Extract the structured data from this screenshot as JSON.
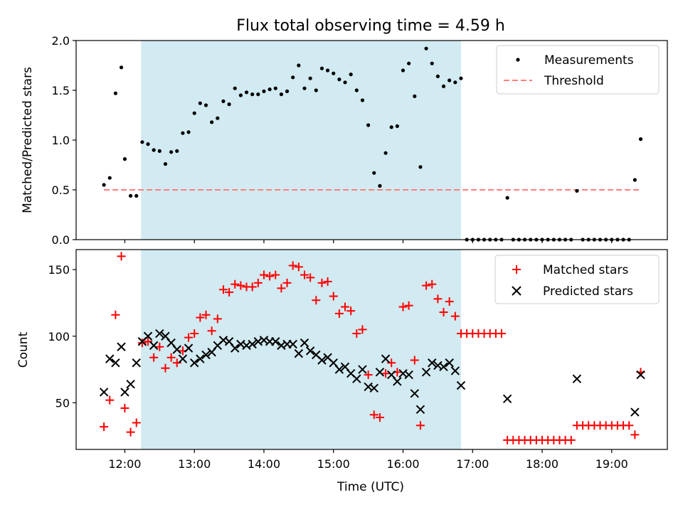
{
  "chart_data": [
    {
      "type": "scatter",
      "title": "Flux total observing time = 4.59 h",
      "ylabel": "Matched/Predicted stars",
      "xlabel": "",
      "xlim": [
        "11:18",
        "19:48"
      ],
      "ylim": [
        0,
        2.0
      ],
      "yticks": [
        "0.0",
        "0.5",
        "1.0",
        "1.5",
        "2.0"
      ],
      "xticks_labeled": false,
      "shaded_region": [
        "12:14",
        "16:50"
      ],
      "legend": [
        "Measurements",
        "Threshold"
      ],
      "legend_position": "top-right",
      "series": [
        {
          "name": "Measurements",
          "points": [
            [
              "11:42",
              0.55
            ],
            [
              "11:47",
              0.62
            ],
            [
              "11:52",
              1.47
            ],
            [
              "11:57",
              1.73
            ],
            [
              "12:00",
              0.81
            ],
            [
              "12:05",
              0.44
            ],
            [
              "12:10",
              0.44
            ],
            [
              "12:15",
              0.98
            ],
            [
              "12:20",
              0.96
            ],
            [
              "12:25",
              0.9
            ],
            [
              "12:30",
              0.89
            ],
            [
              "12:35",
              0.76
            ],
            [
              "12:40",
              0.88
            ],
            [
              "12:45",
              0.89
            ],
            [
              "12:50",
              1.07
            ],
            [
              "12:55",
              1.08
            ],
            [
              "13:00",
              1.27
            ],
            [
              "13:05",
              1.37
            ],
            [
              "13:10",
              1.35
            ],
            [
              "13:15",
              1.18
            ],
            [
              "13:20",
              1.22
            ],
            [
              "13:25",
              1.39
            ],
            [
              "13:30",
              1.36
            ],
            [
              "13:35",
              1.52
            ],
            [
              "13:40",
              1.45
            ],
            [
              "13:45",
              1.48
            ],
            [
              "13:50",
              1.46
            ],
            [
              "13:55",
              1.46
            ],
            [
              "14:00",
              1.49
            ],
            [
              "14:05",
              1.51
            ],
            [
              "14:10",
              1.52
            ],
            [
              "14:15",
              1.46
            ],
            [
              "14:20",
              1.49
            ],
            [
              "14:25",
              1.63
            ],
            [
              "14:30",
              1.75
            ],
            [
              "14:35",
              1.52
            ],
            [
              "14:40",
              1.62
            ],
            [
              "14:45",
              1.5
            ],
            [
              "14:50",
              1.72
            ],
            [
              "14:55",
              1.7
            ],
            [
              "15:00",
              1.67
            ],
            [
              "15:05",
              1.61
            ],
            [
              "15:10",
              1.58
            ],
            [
              "15:15",
              1.66
            ],
            [
              "15:20",
              1.5
            ],
            [
              "15:25",
              1.4
            ],
            [
              "15:30",
              1.15
            ],
            [
              "15:35",
              0.67
            ],
            [
              "15:40",
              0.54
            ],
            [
              "15:45",
              0.87
            ],
            [
              "15:50",
              1.13
            ],
            [
              "15:55",
              1.14
            ],
            [
              "16:00",
              1.7
            ],
            [
              "16:05",
              1.77
            ],
            [
              "16:10",
              1.44
            ],
            [
              "16:15",
              0.73
            ],
            [
              "16:20",
              1.92
            ],
            [
              "16:25",
              1.77
            ],
            [
              "16:30",
              1.64
            ],
            [
              "16:35",
              1.54
            ],
            [
              "16:40",
              1.6
            ],
            [
              "16:45",
              1.58
            ],
            [
              "16:50",
              1.62
            ],
            [
              "16:55",
              0.0
            ],
            [
              "17:00",
              0.0
            ],
            [
              "17:05",
              0.0
            ],
            [
              "17:10",
              0.0
            ],
            [
              "17:15",
              0.0
            ],
            [
              "17:20",
              0.0
            ],
            [
              "17:25",
              0.0
            ],
            [
              "17:30",
              0.42
            ],
            [
              "17:35",
              0.0
            ],
            [
              "17:40",
              0.0
            ],
            [
              "17:45",
              0.0
            ],
            [
              "17:50",
              0.0
            ],
            [
              "17:55",
              0.0
            ],
            [
              "18:00",
              0.0
            ],
            [
              "18:05",
              0.0
            ],
            [
              "18:10",
              0.0
            ],
            [
              "18:15",
              0.0
            ],
            [
              "18:20",
              0.0
            ],
            [
              "18:25",
              0.0
            ],
            [
              "18:30",
              0.49
            ],
            [
              "18:35",
              0.0
            ],
            [
              "18:40",
              0.0
            ],
            [
              "18:45",
              0.0
            ],
            [
              "18:50",
              0.0
            ],
            [
              "18:55",
              0.0
            ],
            [
              "19:00",
              0.0
            ],
            [
              "19:05",
              0.0
            ],
            [
              "19:10",
              0.0
            ],
            [
              "19:15",
              0.0
            ],
            [
              "19:20",
              0.6
            ],
            [
              "19:25",
              1.01
            ]
          ]
        },
        {
          "name": "Threshold",
          "style": "dashed",
          "points": [
            [
              "11:42",
              0.5
            ],
            [
              "19:25",
              0.5
            ]
          ]
        }
      ],
      "colors": {
        "measurements": "#000000",
        "threshold": "#ff7f7f",
        "shade": "#add8e6"
      }
    },
    {
      "type": "scatter",
      "title": "",
      "ylabel": "Count",
      "xlabel": "Time (UTC)",
      "xlim": [
        "11:18",
        "19:48"
      ],
      "ylim": [
        15,
        165
      ],
      "yticks": [
        "50",
        "100",
        "150"
      ],
      "xticks": [
        "12:00",
        "13:00",
        "14:00",
        "15:00",
        "16:00",
        "17:00",
        "18:00",
        "19:00"
      ],
      "shaded_region": [
        "12:14",
        "16:50"
      ],
      "legend": [
        "Matched stars",
        "Predicted stars"
      ],
      "legend_position": "top-right",
      "series": [
        {
          "name": "Matched stars",
          "marker": "+",
          "points": [
            [
              "11:42",
              32
            ],
            [
              "11:47",
              52
            ],
            [
              "11:52",
              116
            ],
            [
              "11:57",
              160
            ],
            [
              "12:00",
              46
            ],
            [
              "12:05",
              28
            ],
            [
              "12:10",
              35
            ],
            [
              "12:15",
              95
            ],
            [
              "12:20",
              96
            ],
            [
              "12:25",
              84
            ],
            [
              "12:30",
              92
            ],
            [
              "12:35",
              76
            ],
            [
              "12:40",
              84
            ],
            [
              "12:45",
              80
            ],
            [
              "12:50",
              89
            ],
            [
              "12:55",
              99
            ],
            [
              "13:00",
              102
            ],
            [
              "13:05",
              114
            ],
            [
              "13:10",
              116
            ],
            [
              "13:15",
              104
            ],
            [
              "13:20",
              113
            ],
            [
              "13:25",
              135
            ],
            [
              "13:30",
              133
            ],
            [
              "13:35",
              139
            ],
            [
              "13:40",
              138
            ],
            [
              "13:45",
              137
            ],
            [
              "13:50",
              137
            ],
            [
              "13:55",
              140
            ],
            [
              "14:00",
              146
            ],
            [
              "14:05",
              145
            ],
            [
              "14:10",
              146
            ],
            [
              "14:15",
              136
            ],
            [
              "14:20",
              140
            ],
            [
              "14:25",
              153
            ],
            [
              "14:30",
              152
            ],
            [
              "14:35",
              146
            ],
            [
              "14:40",
              144
            ],
            [
              "14:45",
              127
            ],
            [
              "14:50",
              140
            ],
            [
              "14:55",
              141
            ],
            [
              "15:00",
              130
            ],
            [
              "15:05",
              117
            ],
            [
              "15:10",
              122
            ],
            [
              "15:15",
              119
            ],
            [
              "15:20",
              102
            ],
            [
              "15:25",
              105
            ],
            [
              "15:30",
              71
            ],
            [
              "15:35",
              41
            ],
            [
              "15:40",
              39
            ],
            [
              "15:45",
              72
            ],
            [
              "15:50",
              80
            ],
            [
              "15:55",
              73
            ],
            [
              "16:00",
              122
            ],
            [
              "16:05",
              123
            ],
            [
              "16:10",
              82
            ],
            [
              "16:15",
              33
            ],
            [
              "16:20",
              138
            ],
            [
              "16:25",
              139
            ],
            [
              "16:30",
              128
            ],
            [
              "16:35",
              118
            ],
            [
              "16:40",
              126
            ],
            [
              "16:45",
              115
            ],
            [
              "16:50",
              102
            ],
            [
              "16:55",
              102
            ],
            [
              "17:00",
              102
            ],
            [
              "17:05",
              102
            ],
            [
              "17:10",
              102
            ],
            [
              "17:15",
              102
            ],
            [
              "17:20",
              102
            ],
            [
              "17:25",
              102
            ],
            [
              "17:30",
              22
            ],
            [
              "17:35",
              22
            ],
            [
              "17:40",
              22
            ],
            [
              "17:45",
              22
            ],
            [
              "17:50",
              22
            ],
            [
              "17:55",
              22
            ],
            [
              "18:00",
              22
            ],
            [
              "18:05",
              22
            ],
            [
              "18:10",
              22
            ],
            [
              "18:15",
              22
            ],
            [
              "18:20",
              22
            ],
            [
              "18:25",
              22
            ],
            [
              "18:30",
              33
            ],
            [
              "18:35",
              33
            ],
            [
              "18:40",
              33
            ],
            [
              "18:45",
              33
            ],
            [
              "18:50",
              33
            ],
            [
              "18:55",
              33
            ],
            [
              "19:00",
              33
            ],
            [
              "19:05",
              33
            ],
            [
              "19:10",
              33
            ],
            [
              "19:15",
              33
            ],
            [
              "19:20",
              26
            ],
            [
              "19:25",
              73
            ]
          ]
        },
        {
          "name": "Predicted stars",
          "marker": "x",
          "points": [
            [
              "11:42",
              58
            ],
            [
              "11:47",
              83
            ],
            [
              "11:52",
              80
            ],
            [
              "11:57",
              92
            ],
            [
              "12:00",
              58
            ],
            [
              "12:05",
              64
            ],
            [
              "12:10",
              80
            ],
            [
              "12:15",
              96
            ],
            [
              "12:20",
              100
            ],
            [
              "12:25",
              93
            ],
            [
              "12:30",
              102
            ],
            [
              "12:35",
              100
            ],
            [
              "12:40",
              95
            ],
            [
              "12:45",
              90
            ],
            [
              "12:50",
              83
            ],
            [
              "12:55",
              91
            ],
            [
              "13:00",
              80
            ],
            [
              "13:05",
              83
            ],
            [
              "13:10",
              86
            ],
            [
              "13:15",
              88
            ],
            [
              "13:20",
              93
            ],
            [
              "13:25",
              97
            ],
            [
              "13:30",
              96
            ],
            [
              "13:35",
              91
            ],
            [
              "13:40",
              94
            ],
            [
              "13:45",
              93
            ],
            [
              "13:50",
              94
            ],
            [
              "13:55",
              96
            ],
            [
              "14:00",
              97
            ],
            [
              "14:05",
              96
            ],
            [
              "14:10",
              96
            ],
            [
              "14:15",
              93
            ],
            [
              "14:20",
              94
            ],
            [
              "14:25",
              94
            ],
            [
              "14:30",
              87
            ],
            [
              "14:35",
              95
            ],
            [
              "14:40",
              89
            ],
            [
              "14:45",
              86
            ],
            [
              "14:50",
              82
            ],
            [
              "14:55",
              84
            ],
            [
              "15:00",
              80
            ],
            [
              "15:05",
              75
            ],
            [
              "15:10",
              77
            ],
            [
              "15:15",
              72
            ],
            [
              "15:20",
              68
            ],
            [
              "15:25",
              75
            ],
            [
              "15:30",
              62
            ],
            [
              "15:35",
              61
            ],
            [
              "15:40",
              73
            ],
            [
              "15:45",
              83
            ],
            [
              "15:50",
              71
            ],
            [
              "15:55",
              66
            ],
            [
              "16:00",
              72
            ],
            [
              "16:05",
              71
            ],
            [
              "16:10",
              57
            ],
            [
              "16:15",
              45
            ],
            [
              "16:20",
              73
            ],
            [
              "16:25",
              80
            ],
            [
              "16:30",
              78
            ],
            [
              "16:35",
              77
            ],
            [
              "16:40",
              80
            ],
            [
              "16:45",
              74
            ],
            [
              "16:50",
              63
            ],
            [
              "17:30",
              53
            ],
            [
              "18:30",
              68
            ],
            [
              "19:20",
              43
            ],
            [
              "19:25",
              71
            ]
          ]
        }
      ],
      "colors": {
        "matched": "#ff0000",
        "predicted": "#000000",
        "shade": "#add8e6"
      }
    }
  ]
}
